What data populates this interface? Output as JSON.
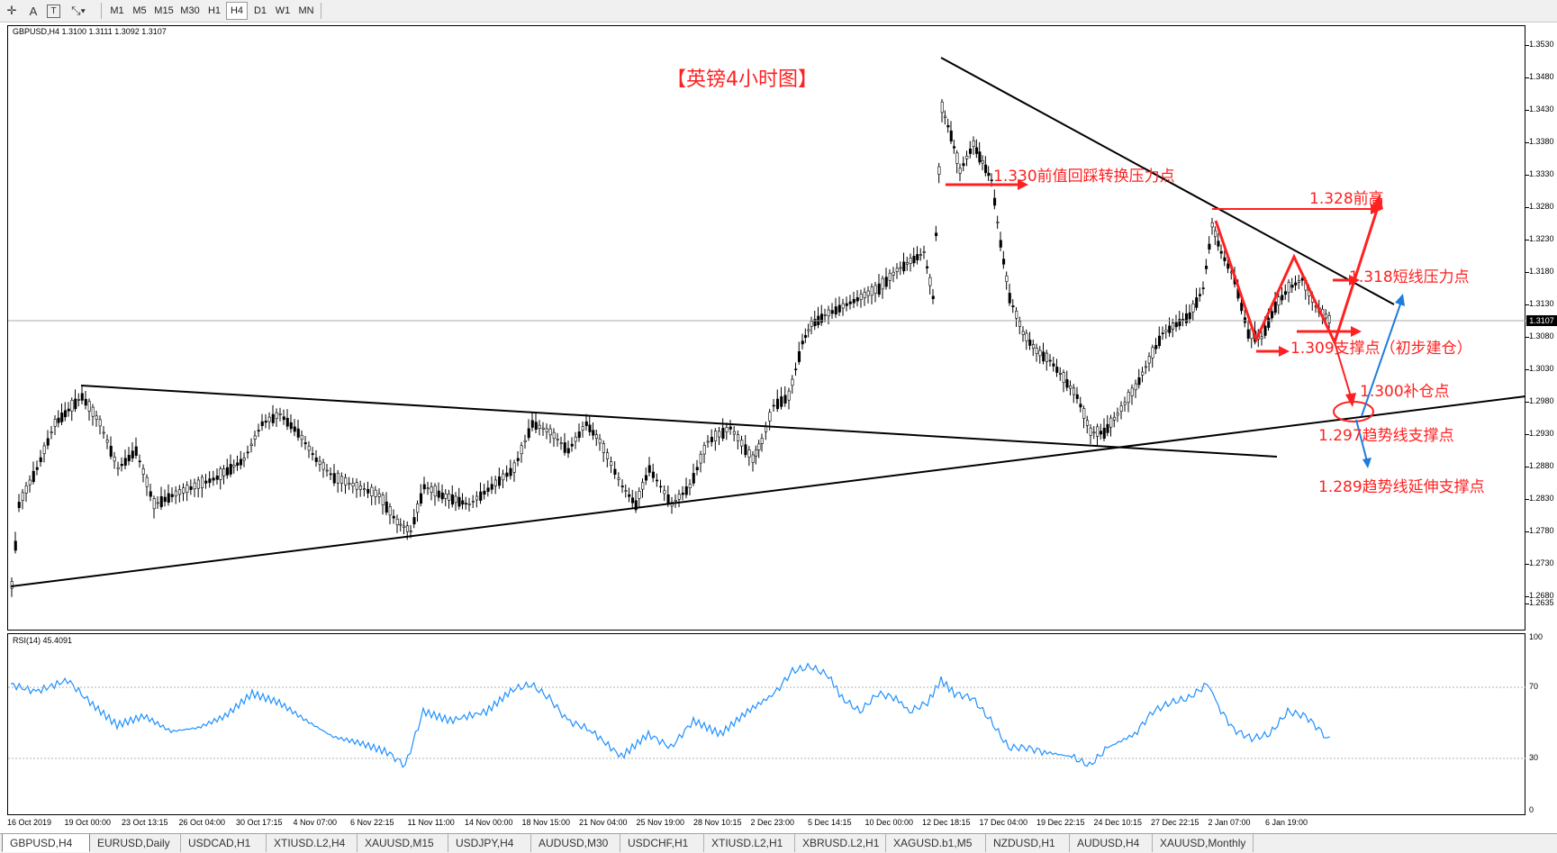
{
  "toolbar": {
    "icons": [
      "crosshair-icon",
      "text-icon",
      "text-label-icon",
      "arrows-icon"
    ],
    "timeframes": [
      "M1",
      "M5",
      "M15",
      "M30",
      "H1",
      "H4",
      "D1",
      "W1",
      "MN"
    ],
    "active_timeframe": "H4"
  },
  "chart": {
    "symbol_info": "GBPUSD,H4  1.3100 1.3111 1.3092 1.3107",
    "title": "【英镑4小时图】",
    "price_labels": [
      "1.3530",
      "1.3480",
      "1.3430",
      "1.3380",
      "1.3330",
      "1.3280",
      "1.3230",
      "1.3180",
      "1.3130",
      "1.3080",
      "1.3030",
      "1.2980",
      "1.2930",
      "1.2880",
      "1.2830",
      "1.2780",
      "1.2730",
      "1.2680",
      "1.2635"
    ],
    "current_price": "1.3107",
    "annotations": {
      "resistance_1330": "1.330前值回踩转换压力点",
      "prev_high_1328": "1.328前高",
      "short_resistance_1318": "1.318短线压力点",
      "support_1309": "1.309支撑点（初步建仓）",
      "add_position_1300": "1.300补仓点",
      "trendline_support_1297": "1.297趋势线支撑点",
      "trendline_ext_1289": "1.289趋势线延伸支撑点"
    },
    "colors": {
      "annotation": "#ff2020",
      "projection": "#1e7ddc",
      "candle": "#000000",
      "rsi_line": "#1e90ff"
    }
  },
  "rsi": {
    "info": "RSI(14) 45.4091",
    "levels": [
      "100",
      "70",
      "30",
      "0"
    ]
  },
  "dates": [
    "16 Oct 2019",
    "19 Oct 00:00",
    "23 Oct 13:15",
    "26 Oct 04:00",
    "30 Oct 17:15",
    "4 Nov 07:00",
    "6 Nov 22:15",
    "11 Nov 11:00",
    "14 Nov 00:00",
    "18 Nov 15:00",
    "21 Nov 04:00",
    "25 Nov 19:00",
    "28 Nov 10:15",
    "2 Dec 23:00",
    "5 Dec 14:15",
    "10 Dec 00:00",
    "12 Dec 18:15",
    "17 Dec 04:00",
    "19 Dec 22:15",
    "24 Dec 10:15",
    "27 Dec 22:15",
    "2 Jan 07:00",
    "6 Jan 19:00"
  ],
  "tabs": [
    "GBPUSD,H4",
    "EURUSD,Daily",
    "USDCAD,H1",
    "XTIUSD.L2,H4",
    "XAUUSD,M15",
    "USDJPY,H4",
    "AUDUSD,M30",
    "USDCHF,H1",
    "XTIUSD.L2,H1",
    "XBRUSD.L2,H1",
    "XAGUSD.b1,M5",
    "NZDUSD,H1",
    "AUDUSD,H4",
    "XAUUSD,Monthly"
  ],
  "active_tab": "GBPUSD,H4"
}
